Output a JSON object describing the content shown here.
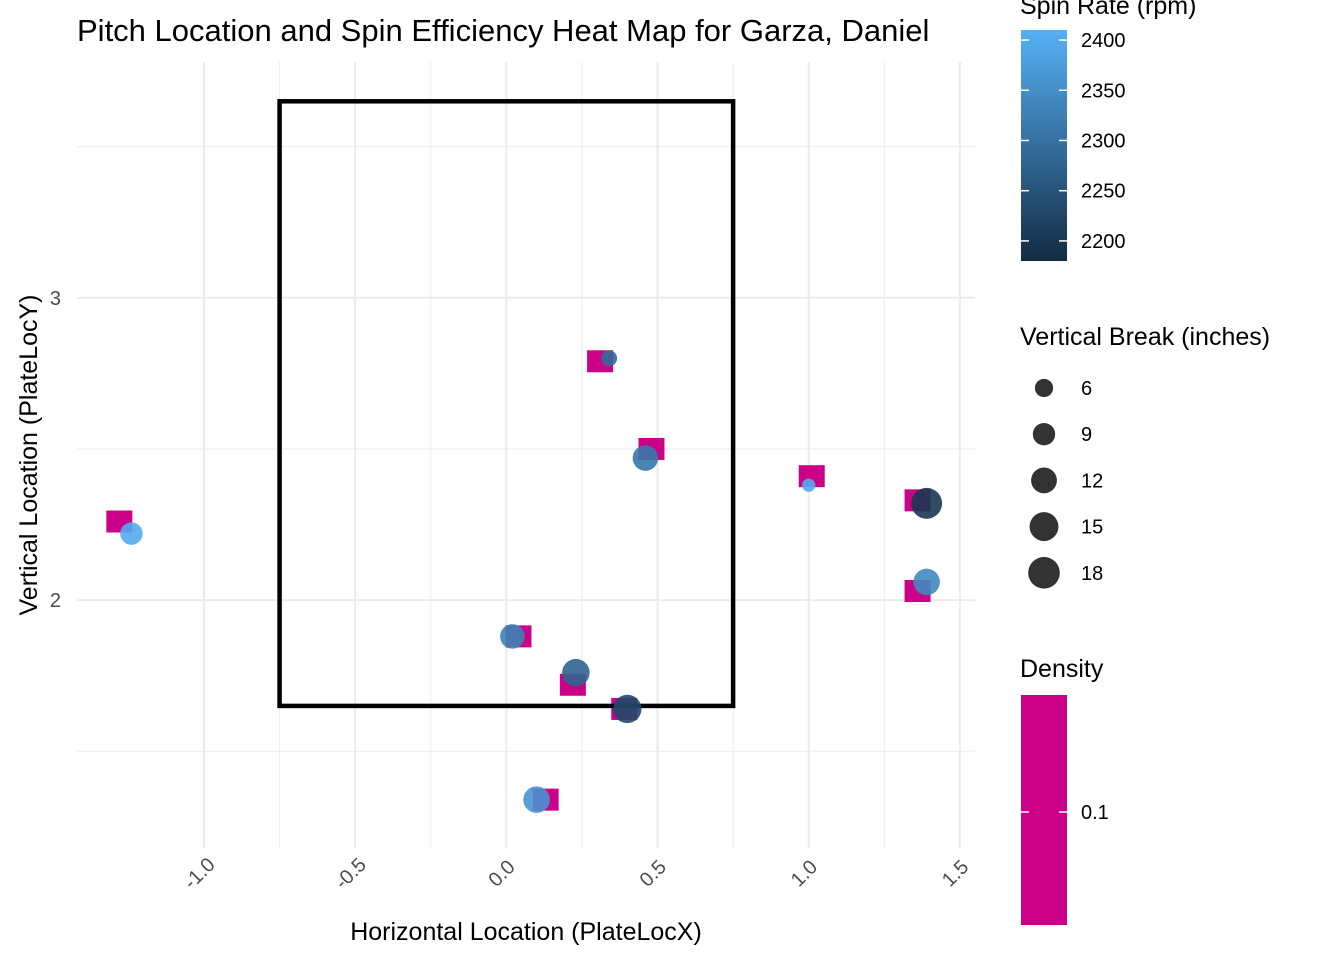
{
  "chart_data": {
    "type": "scatter",
    "title": "Pitch Location and Spin Efficiency Heat Map for Garza, Daniel",
    "xlabel": "Horizontal Location (PlateLocX)",
    "ylabel": "Vertical Location (PlateLocY)",
    "xlim": [
      -1.42,
      1.55
    ],
    "ylim": [
      1.18,
      3.78
    ],
    "x_ticks": [
      "-1.0",
      "-0.5",
      "0.0",
      "0.5",
      "1.0",
      "1.5"
    ],
    "x_tick_values": [
      -1.0,
      -0.5,
      0.0,
      0.5,
      1.0,
      1.5
    ],
    "y_ticks": [
      "2",
      "3"
    ],
    "y_tick_values": [
      2,
      3
    ],
    "grid": true,
    "strike_zone": {
      "x": [
        -0.75,
        0.75
      ],
      "y": [
        1.65,
        3.65
      ]
    },
    "density_tiles": [
      {
        "x": -1.28,
        "y": 2.26
      },
      {
        "x": 0.31,
        "y": 2.79
      },
      {
        "x": 0.48,
        "y": 2.5
      },
      {
        "x": 1.01,
        "y": 2.41
      },
      {
        "x": 1.36,
        "y": 2.33
      },
      {
        "x": 1.36,
        "y": 2.03
      },
      {
        "x": 0.04,
        "y": 1.88
      },
      {
        "x": 0.22,
        "y": 1.72
      },
      {
        "x": 0.39,
        "y": 1.64
      },
      {
        "x": 0.13,
        "y": 1.34
      }
    ],
    "pitches": [
      {
        "x": -1.24,
        "y": 2.22,
        "spin_rate": 2400,
        "vertical_break": 10
      },
      {
        "x": 0.34,
        "y": 2.8,
        "spin_rate": 2290,
        "vertical_break": 5
      },
      {
        "x": 0.46,
        "y": 2.47,
        "spin_rate": 2310,
        "vertical_break": 13
      },
      {
        "x": 1.0,
        "y": 2.38,
        "spin_rate": 2400,
        "vertical_break": 3.5
      },
      {
        "x": 1.39,
        "y": 2.32,
        "spin_rate": 2200,
        "vertical_break": 19
      },
      {
        "x": 1.39,
        "y": 2.06,
        "spin_rate": 2340,
        "vertical_break": 14
      },
      {
        "x": 0.02,
        "y": 1.88,
        "spin_rate": 2330,
        "vertical_break": 12
      },
      {
        "x": 0.23,
        "y": 1.76,
        "spin_rate": 2280,
        "vertical_break": 15
      },
      {
        "x": 0.4,
        "y": 1.64,
        "spin_rate": 2230,
        "vertical_break": 16
      },
      {
        "x": 0.1,
        "y": 1.34,
        "spin_rate": 2360,
        "vertical_break": 14
      }
    ],
    "legends": {
      "spin": {
        "title": "Spin Rate (rpm)",
        "min": 2180,
        "max": 2410,
        "ticks": [
          "2200",
          "2250",
          "2300",
          "2350",
          "2400"
        ],
        "tick_values": [
          2200,
          2250,
          2300,
          2350,
          2400
        ],
        "color_low": "#132B43",
        "color_high": "#56B1F7"
      },
      "size": {
        "title": "Vertical Break (inches)",
        "labels": [
          "6",
          "9",
          "12",
          "15",
          "18"
        ],
        "values": [
          6,
          9,
          12,
          15,
          18
        ]
      },
      "density": {
        "title": "Density",
        "ticks": [
          "0.1"
        ],
        "color": "#CC0088"
      }
    },
    "colors": {
      "density_fill": "#CC0088",
      "strike_zone": "#000000",
      "grid": "#EBEBEB",
      "size_legend_point": "#333333"
    }
  }
}
